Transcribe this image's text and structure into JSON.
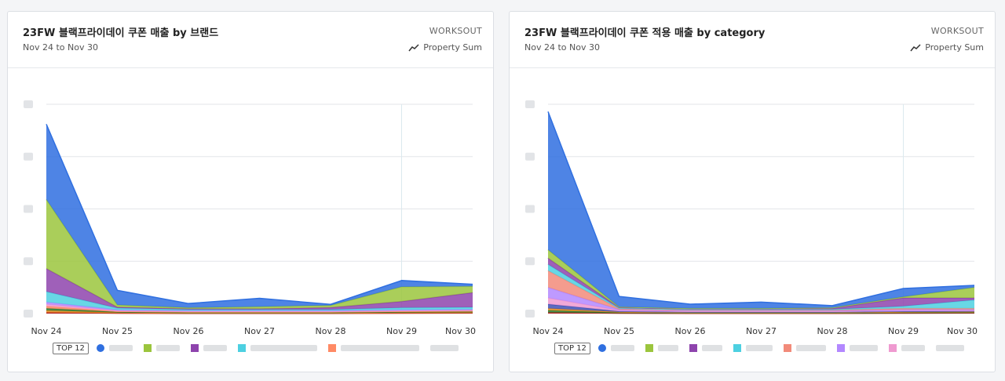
{
  "cards": [
    {
      "title": "23FW 블랙프라이데이 쿠폰 매출 by 브랜드",
      "date_range": "Nov 24 to Nov 30",
      "org": "WORKSOUT",
      "metric_label": "Property Sum",
      "legend_badge": "TOP 12"
    },
    {
      "title": "23FW 블랙프라이데이 쿠폰 적용 매출 by category",
      "date_range": "Nov 24 to Nov 30",
      "org": "WORKSOUT",
      "metric_label": "Property Sum",
      "legend_badge": "TOP 12"
    }
  ],
  "chart_data": [
    {
      "type": "area",
      "stacked": true,
      "categories": [
        "Nov 24",
        "Nov 25",
        "Nov 26",
        "Nov 27",
        "Nov 28",
        "Nov 29",
        "Nov 30"
      ],
      "ylim": [
        0,
        100
      ],
      "grid": true,
      "legend_position": "bottom",
      "series": [
        {
          "color": "#b71c1c",
          "values": [
            0.5,
            0.2,
            0.1,
            0.1,
            0.1,
            0.2,
            0.3
          ]
        },
        {
          "color": "#e08b24",
          "values": [
            1,
            0.3,
            0.2,
            0.2,
            0.2,
            0.3,
            0.3
          ]
        },
        {
          "color": "#2e7d32",
          "values": [
            1,
            0.3,
            0.2,
            0.2,
            0.2,
            0.3,
            0.3
          ]
        },
        {
          "color": "#ff8a65",
          "values": [
            1,
            0.3,
            0.3,
            0.3,
            0.3,
            0.3,
            0.4
          ]
        },
        {
          "color": "#ef9ad0",
          "values": [
            1,
            0.3,
            0.3,
            0.3,
            0.3,
            0.3,
            0.3
          ]
        },
        {
          "color": "#b388ff",
          "values": [
            1,
            0.4,
            0.3,
            0.3,
            0.3,
            0.4,
            0.4
          ]
        },
        {
          "color": "#4dd0e1",
          "values": [
            5,
            0.8,
            0.5,
            0.5,
            0.5,
            1,
            1
          ]
        },
        {
          "color": "#8e44ad",
          "values": [
            11,
            0.5,
            0.4,
            0.4,
            1,
            3,
            7
          ]
        },
        {
          "color": "#9bc53d",
          "values": [
            33,
            1,
            0.5,
            1,
            1,
            7,
            3
          ]
        },
        {
          "color": "#2f6fe0",
          "values": [
            36,
            7,
            2,
            4,
            0.5,
            3,
            1
          ]
        }
      ]
    },
    {
      "type": "area",
      "stacked": true,
      "categories": [
        "Nov 24",
        "Nov 25",
        "Nov 26",
        "Nov 27",
        "Nov 28",
        "Nov 29",
        "Nov 30"
      ],
      "ylim": [
        0,
        100
      ],
      "grid": true,
      "legend_position": "bottom",
      "series": [
        {
          "color": "#b71c1c",
          "values": [
            0.5,
            0.2,
            0.1,
            0.1,
            0.1,
            0.2,
            0.3
          ]
        },
        {
          "color": "#2e7d32",
          "values": [
            1,
            0.3,
            0.2,
            0.2,
            0.2,
            0.3,
            0.3
          ]
        },
        {
          "color": "#e08b24",
          "values": [
            1,
            0.3,
            0.2,
            0.2,
            0.2,
            0.3,
            0.3
          ]
        },
        {
          "color": "#3f51b5",
          "values": [
            2,
            0.3,
            0.3,
            0.3,
            0.3,
            0.3,
            0.3
          ]
        },
        {
          "color": "#ef9ad0",
          "values": [
            3,
            0.4,
            0.3,
            0.3,
            0.3,
            0.3,
            0.3
          ]
        },
        {
          "color": "#b388ff",
          "values": [
            5,
            0.4,
            0.3,
            0.3,
            0.3,
            0.5,
            0.4
          ]
        },
        {
          "color": "#f28b7a",
          "values": [
            8,
            0.4,
            0.3,
            0.3,
            0.3,
            0.6,
            0.6
          ]
        },
        {
          "color": "#4dd0e1",
          "values": [
            3,
            0.3,
            0.3,
            0.3,
            0.3,
            1,
            4
          ]
        },
        {
          "color": "#8e44ad",
          "values": [
            3,
            0.3,
            0.3,
            0.3,
            0.5,
            4,
            1
          ]
        },
        {
          "color": "#9bc53d",
          "values": [
            4,
            0.3,
            0.2,
            0.2,
            0.3,
            0.5,
            5
          ]
        },
        {
          "color": "#2f6fe0",
          "values": [
            66,
            5,
            2,
            3,
            1,
            4,
            1
          ]
        }
      ]
    }
  ],
  "legends": [
    [
      {
        "color": "#2f6fe0",
        "shape": "dot",
        "label_width": 30
      },
      {
        "color": "#9bc53d",
        "shape": "square",
        "label_width": 30
      },
      {
        "color": "#8e44ad",
        "shape": "square",
        "label_width": 30
      },
      {
        "color": "#4dd0e1",
        "shape": "square",
        "label_width": 85
      },
      {
        "color": "#ff8a65",
        "shape": "square",
        "label_width": 100
      },
      {
        "color": "#cccccc",
        "shape": "none",
        "label_width": 36
      }
    ],
    [
      {
        "color": "#2f6fe0",
        "shape": "dot",
        "label_width": 30
      },
      {
        "color": "#9bc53d",
        "shape": "square",
        "label_width": 26
      },
      {
        "color": "#8e44ad",
        "shape": "square",
        "label_width": 26
      },
      {
        "color": "#4dd0e1",
        "shape": "square",
        "label_width": 34
      },
      {
        "color": "#f28b7a",
        "shape": "square",
        "label_width": 38
      },
      {
        "color": "#b388ff",
        "shape": "square",
        "label_width": 36
      },
      {
        "color": "#ef9ad0",
        "shape": "square",
        "label_width": 30
      },
      {
        "color": "#cccccc",
        "shape": "none",
        "label_width": 36
      }
    ]
  ]
}
